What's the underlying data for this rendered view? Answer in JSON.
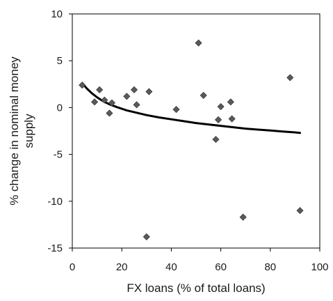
{
  "chart_data": {
    "type": "scatter",
    "title": "",
    "xlabel": "FX loans (% of total loans)",
    "ylabel": "% change in nominal money supply",
    "xlim": [
      0,
      100
    ],
    "ylim": [
      -15,
      10
    ],
    "x_ticks": [
      0,
      20,
      40,
      60,
      80,
      100
    ],
    "y_ticks": [
      10,
      5,
      0,
      -5,
      -10,
      -15
    ],
    "grid": false,
    "legend": "none",
    "marker": "diamond",
    "marker_color": "#5a5a5a",
    "line_color": "#000000",
    "series": [
      {
        "kind": "points",
        "points": [
          {
            "x": 4,
            "y": 2.4
          },
          {
            "x": 9,
            "y": 0.6
          },
          {
            "x": 11,
            "y": 1.9
          },
          {
            "x": 13,
            "y": 0.8
          },
          {
            "x": 15,
            "y": -0.6
          },
          {
            "x": 16,
            "y": 0.5
          },
          {
            "x": 22,
            "y": 1.2
          },
          {
            "x": 25,
            "y": 1.9
          },
          {
            "x": 26,
            "y": 0.3
          },
          {
            "x": 30,
            "y": -13.8
          },
          {
            "x": 31,
            "y": 1.7
          },
          {
            "x": 42,
            "y": -0.2
          },
          {
            "x": 51,
            "y": 6.9
          },
          {
            "x": 53,
            "y": 1.3
          },
          {
            "x": 58,
            "y": -3.4
          },
          {
            "x": 59,
            "y": -1.3
          },
          {
            "x": 60,
            "y": 0.1
          },
          {
            "x": 64,
            "y": 0.6
          },
          {
            "x": 64.5,
            "y": -1.2
          },
          {
            "x": 69,
            "y": -11.7
          },
          {
            "x": 88,
            "y": 3.2
          },
          {
            "x": 92,
            "y": -11.0
          }
        ]
      },
      {
        "kind": "trend",
        "points": [
          {
            "x": 4,
            "y": 2.6
          },
          {
            "x": 6,
            "y": 2.0
          },
          {
            "x": 8,
            "y": 1.5
          },
          {
            "x": 10,
            "y": 1.1
          },
          {
            "x": 12,
            "y": 0.75
          },
          {
            "x": 15,
            "y": 0.35
          },
          {
            "x": 18,
            "y": 0.05
          },
          {
            "x": 22,
            "y": -0.3
          },
          {
            "x": 26,
            "y": -0.55
          },
          {
            "x": 30,
            "y": -0.8
          },
          {
            "x": 35,
            "y": -1.05
          },
          {
            "x": 40,
            "y": -1.25
          },
          {
            "x": 45,
            "y": -1.45
          },
          {
            "x": 50,
            "y": -1.65
          },
          {
            "x": 55,
            "y": -1.8
          },
          {
            "x": 60,
            "y": -1.95
          },
          {
            "x": 65,
            "y": -2.1
          },
          {
            "x": 70,
            "y": -2.25
          },
          {
            "x": 75,
            "y": -2.35
          },
          {
            "x": 80,
            "y": -2.45
          },
          {
            "x": 85,
            "y": -2.55
          },
          {
            "x": 90,
            "y": -2.65
          },
          {
            "x": 92,
            "y": -2.7
          }
        ]
      }
    ]
  }
}
